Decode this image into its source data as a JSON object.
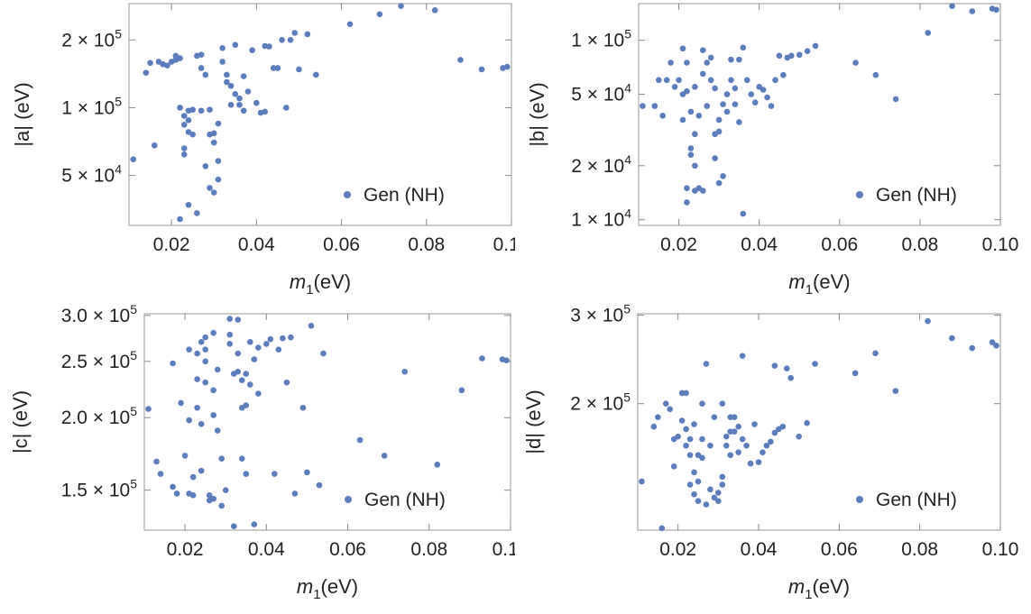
{
  "chart_data": [
    {
      "type": "scatter",
      "ylabel": "|a| (eV)",
      "xlabel_main": "m",
      "xlabel_sub": "1",
      "xlabel_unit": "(eV)",
      "xlim": [
        0.01,
        0.1
      ],
      "ylim": [
        30000,
        290000
      ],
      "yscale": "log",
      "x_ticks": [
        0.02,
        0.04,
        0.06,
        0.08,
        0.1
      ],
      "x_tick_labels": [
        "0.02",
        "0.04",
        "0.06",
        "0.08",
        "0.10"
      ],
      "y_ticks": [
        {
          "value": 50000,
          "mantissa": "5",
          "exp": "4"
        },
        {
          "value": 100000,
          "mantissa": "1",
          "exp": "5"
        },
        {
          "value": 200000,
          "mantissa": "2",
          "exp": "5"
        }
      ],
      "legend": "Gen (NH)",
      "color": "#5b7dbd",
      "points": [
        [
          0.011,
          59000
        ],
        [
          0.014,
          143000
        ],
        [
          0.015,
          158000
        ],
        [
          0.016,
          68000
        ],
        [
          0.017,
          160000
        ],
        [
          0.018,
          156000
        ],
        [
          0.019,
          154000
        ],
        [
          0.02,
          160000
        ],
        [
          0.021,
          163000
        ],
        [
          0.021,
          170000
        ],
        [
          0.022,
          166000
        ],
        [
          0.022,
          100000
        ],
        [
          0.023,
          92000
        ],
        [
          0.023,
          84000
        ],
        [
          0.023,
          66000
        ],
        [
          0.023,
          62000
        ],
        [
          0.022,
          32000
        ],
        [
          0.024,
          97000
        ],
        [
          0.024,
          88000
        ],
        [
          0.024,
          78000
        ],
        [
          0.024,
          37000
        ],
        [
          0.025,
          98000
        ],
        [
          0.025,
          76000
        ],
        [
          0.026,
          170000
        ],
        [
          0.026,
          34000
        ],
        [
          0.027,
          172000
        ],
        [
          0.027,
          150000
        ],
        [
          0.027,
          97000
        ],
        [
          0.028,
          140000
        ],
        [
          0.028,
          55000
        ],
        [
          0.029,
          98000
        ],
        [
          0.029,
          76000
        ],
        [
          0.029,
          44000
        ],
        [
          0.03,
          42000
        ],
        [
          0.03,
          70000
        ],
        [
          0.03,
          77000
        ],
        [
          0.031,
          85000
        ],
        [
          0.031,
          48000
        ],
        [
          0.031,
          58000
        ],
        [
          0.032,
          184000
        ],
        [
          0.032,
          160000
        ],
        [
          0.033,
          140000
        ],
        [
          0.033,
          130000
        ],
        [
          0.034,
          103000
        ],
        [
          0.034,
          125000
        ],
        [
          0.035,
          190000
        ],
        [
          0.035,
          115000
        ],
        [
          0.036,
          110000
        ],
        [
          0.036,
          103000
        ],
        [
          0.037,
          138000
        ],
        [
          0.037,
          97000
        ],
        [
          0.038,
          118000
        ],
        [
          0.039,
          180000
        ],
        [
          0.04,
          105000
        ],
        [
          0.041,
          95000
        ],
        [
          0.042,
          96000
        ],
        [
          0.042,
          188000
        ],
        [
          0.043,
          187000
        ],
        [
          0.044,
          150000
        ],
        [
          0.045,
          150000
        ],
        [
          0.046,
          200000
        ],
        [
          0.047,
          100000
        ],
        [
          0.048,
          200000
        ],
        [
          0.049,
          215000
        ],
        [
          0.05,
          148000
        ],
        [
          0.052,
          212000
        ],
        [
          0.054,
          140000
        ],
        [
          0.062,
          235000
        ],
        [
          0.069,
          260000
        ],
        [
          0.074,
          283000
        ],
        [
          0.082,
          271000
        ],
        [
          0.088,
          163000
        ],
        [
          0.093,
          148000
        ],
        [
          0.098,
          150000
        ],
        [
          0.099,
          152000
        ]
      ]
    },
    {
      "type": "scatter",
      "ylabel": "|b| (eV)",
      "xlabel_main": "m",
      "xlabel_sub": "1",
      "xlabel_unit": "(eV)",
      "xlim": [
        0.01,
        0.1
      ],
      "ylim": [
        9300,
        160000
      ],
      "yscale": "log",
      "x_ticks": [
        0.02,
        0.04,
        0.06,
        0.08,
        0.1
      ],
      "x_tick_labels": [
        "0.02",
        "0.04",
        "0.06",
        "0.08",
        "0.10"
      ],
      "y_ticks": [
        {
          "value": 10000,
          "mantissa": "1",
          "exp": "4"
        },
        {
          "value": 20000,
          "mantissa": "2",
          "exp": "4"
        },
        {
          "value": 50000,
          "mantissa": "5",
          "exp": "4"
        },
        {
          "value": 100000,
          "mantissa": "1",
          "exp": "5"
        }
      ],
      "legend": "Gen (NH)",
      "color": "#5b7dbd",
      "points": [
        [
          0.011,
          43000
        ],
        [
          0.014,
          43000
        ],
        [
          0.015,
          60000
        ],
        [
          0.016,
          38000
        ],
        [
          0.017,
          60000
        ],
        [
          0.018,
          75000
        ],
        [
          0.019,
          55000
        ],
        [
          0.02,
          60000
        ],
        [
          0.021,
          90000
        ],
        [
          0.021,
          50000
        ],
        [
          0.021,
          36000
        ],
        [
          0.022,
          15000
        ],
        [
          0.022,
          12500
        ],
        [
          0.022,
          75000
        ],
        [
          0.022,
          52000
        ],
        [
          0.023,
          40000
        ],
        [
          0.023,
          25000
        ],
        [
          0.023,
          23000
        ],
        [
          0.024,
          14500
        ],
        [
          0.024,
          20000
        ],
        [
          0.024,
          30000
        ],
        [
          0.024,
          55000
        ],
        [
          0.025,
          15000
        ],
        [
          0.025,
          38000
        ],
        [
          0.026,
          14500
        ],
        [
          0.026,
          88000
        ],
        [
          0.026,
          65000
        ],
        [
          0.027,
          75000
        ],
        [
          0.027,
          43000
        ],
        [
          0.028,
          80000
        ],
        [
          0.028,
          60000
        ],
        [
          0.029,
          22000
        ],
        [
          0.029,
          30000
        ],
        [
          0.029,
          54000
        ],
        [
          0.03,
          16000
        ],
        [
          0.03,
          36000
        ],
        [
          0.03,
          31000
        ],
        [
          0.031,
          44000
        ],
        [
          0.031,
          17500
        ],
        [
          0.032,
          40000
        ],
        [
          0.032,
          50000
        ],
        [
          0.033,
          78000
        ],
        [
          0.033,
          60000
        ],
        [
          0.034,
          54000
        ],
        [
          0.034,
          44000
        ],
        [
          0.035,
          35000
        ],
        [
          0.035,
          78000
        ],
        [
          0.036,
          91000
        ],
        [
          0.036,
          10800
        ],
        [
          0.037,
          60000
        ],
        [
          0.038,
          50000
        ],
        [
          0.039,
          45000
        ],
        [
          0.04,
          55000
        ],
        [
          0.041,
          53000
        ],
        [
          0.042,
          48000
        ],
        [
          0.043,
          43000
        ],
        [
          0.044,
          60000
        ],
        [
          0.045,
          82000
        ],
        [
          0.046,
          64000
        ],
        [
          0.047,
          80000
        ],
        [
          0.048,
          82000
        ],
        [
          0.05,
          83000
        ],
        [
          0.052,
          87000
        ],
        [
          0.054,
          93000
        ],
        [
          0.064,
          75000
        ],
        [
          0.069,
          64000
        ],
        [
          0.074,
          47000
        ],
        [
          0.082,
          110000
        ],
        [
          0.088,
          155000
        ],
        [
          0.093,
          145000
        ],
        [
          0.098,
          150000
        ],
        [
          0.099,
          148000
        ]
      ]
    },
    {
      "type": "scatter",
      "ylabel": "|c| (eV)",
      "xlabel_main": "m",
      "xlabel_sub": "1",
      "xlabel_unit": "(eV)",
      "xlim": [
        0.01,
        0.1
      ],
      "ylim": [
        128000,
        302000
      ],
      "yscale": "log",
      "x_ticks": [
        0.02,
        0.04,
        0.06,
        0.08,
        0.1
      ],
      "x_tick_labels": [
        "0.02",
        "0.04",
        "0.06",
        "0.08",
        "0.10"
      ],
      "y_ticks": [
        {
          "value": 150000,
          "mantissa": "1.5",
          "exp": "5"
        },
        {
          "value": 200000,
          "mantissa": "2.0",
          "exp": "5"
        },
        {
          "value": 250000,
          "mantissa": "2.5",
          "exp": "5"
        },
        {
          "value": 300000,
          "mantissa": "3.0",
          "exp": "5"
        }
      ],
      "legend": "Gen (NH)",
      "color": "#5b7dbd",
      "points": [
        [
          0.011,
          207000
        ],
        [
          0.013,
          168000
        ],
        [
          0.014,
          160000
        ],
        [
          0.017,
          248000
        ],
        [
          0.017,
          152000
        ],
        [
          0.018,
          148000
        ],
        [
          0.019,
          212000
        ],
        [
          0.02,
          172000
        ],
        [
          0.021,
          262000
        ],
        [
          0.021,
          198000
        ],
        [
          0.021,
          148000
        ],
        [
          0.022,
          158000
        ],
        [
          0.022,
          147000
        ],
        [
          0.023,
          258000
        ],
        [
          0.023,
          233000
        ],
        [
          0.023,
          208000
        ],
        [
          0.024,
          270000
        ],
        [
          0.024,
          195000
        ],
        [
          0.024,
          162000
        ],
        [
          0.025,
          275000
        ],
        [
          0.025,
          262000
        ],
        [
          0.025,
          250000
        ],
        [
          0.025,
          230000
        ],
        [
          0.026,
          147000
        ],
        [
          0.026,
          144000
        ],
        [
          0.027,
          145000
        ],
        [
          0.027,
          280000
        ],
        [
          0.027,
          223000
        ],
        [
          0.027,
          202000
        ],
        [
          0.028,
          242000
        ],
        [
          0.028,
          190000
        ],
        [
          0.029,
          170000
        ],
        [
          0.029,
          141000
        ],
        [
          0.03,
          150000
        ],
        [
          0.031,
          296000
        ],
        [
          0.031,
          278000
        ],
        [
          0.031,
          268000
        ],
        [
          0.032,
          238000
        ],
        [
          0.032,
          130000
        ],
        [
          0.033,
          295000
        ],
        [
          0.033,
          258000
        ],
        [
          0.033,
          240000
        ],
        [
          0.034,
          232000
        ],
        [
          0.034,
          208000
        ],
        [
          0.034,
          170000
        ],
        [
          0.035,
          210000
        ],
        [
          0.035,
          160000
        ],
        [
          0.035,
          238000
        ],
        [
          0.036,
          228000
        ],
        [
          0.036,
          270000
        ],
        [
          0.037,
          252000
        ],
        [
          0.037,
          131000
        ],
        [
          0.038,
          220000
        ],
        [
          0.038,
          264000
        ],
        [
          0.04,
          268000
        ],
        [
          0.041,
          273000
        ],
        [
          0.042,
          160000
        ],
        [
          0.043,
          262000
        ],
        [
          0.044,
          274000
        ],
        [
          0.045,
          230000
        ],
        [
          0.046,
          275000
        ],
        [
          0.047,
          148000
        ],
        [
          0.049,
          208000
        ],
        [
          0.05,
          161000
        ],
        [
          0.051,
          288000
        ],
        [
          0.053,
          153000
        ],
        [
          0.054,
          258000
        ],
        [
          0.063,
          183000
        ],
        [
          0.069,
          172000
        ],
        [
          0.074,
          240000
        ],
        [
          0.082,
          166000
        ],
        [
          0.088,
          223000
        ],
        [
          0.093,
          253000
        ],
        [
          0.098,
          252000
        ],
        [
          0.099,
          251000
        ]
      ]
    },
    {
      "type": "scatter",
      "ylabel": "|d| (eV)",
      "xlabel_main": "m",
      "xlabel_sub": "1",
      "xlabel_unit": "(eV)",
      "xlim": [
        0.01,
        0.1
      ],
      "ylim": [
        112000,
        302000
      ],
      "yscale": "log",
      "x_ticks": [
        0.02,
        0.04,
        0.06,
        0.08,
        0.1
      ],
      "x_tick_labels": [
        "0.02",
        "0.04",
        "0.06",
        "0.08",
        "0.10"
      ],
      "y_ticks": [
        {
          "value": 200000,
          "mantissa": "2",
          "exp": "5"
        },
        {
          "value": 300000,
          "mantissa": "3",
          "exp": "5"
        }
      ],
      "legend": "Gen (NH)",
      "color": "#5b7dbd",
      "points": [
        [
          0.011,
          140000
        ],
        [
          0.014,
          180000
        ],
        [
          0.015,
          188000
        ],
        [
          0.016,
          113000
        ],
        [
          0.017,
          200000
        ],
        [
          0.018,
          195000
        ],
        [
          0.019,
          170000
        ],
        [
          0.019,
          150000
        ],
        [
          0.02,
          172000
        ],
        [
          0.021,
          185000
        ],
        [
          0.021,
          210000
        ],
        [
          0.022,
          210000
        ],
        [
          0.022,
          178000
        ],
        [
          0.022,
          165000
        ],
        [
          0.023,
          138000
        ],
        [
          0.023,
          170000
        ],
        [
          0.023,
          158000
        ],
        [
          0.024,
          182000
        ],
        [
          0.024,
          132000
        ],
        [
          0.024,
          146000
        ],
        [
          0.025,
          140000
        ],
        [
          0.025,
          158000
        ],
        [
          0.025,
          128000
        ],
        [
          0.026,
          156000
        ],
        [
          0.026,
          200000
        ],
        [
          0.026,
          170000
        ],
        [
          0.027,
          240000
        ],
        [
          0.027,
          126000
        ],
        [
          0.028,
          135000
        ],
        [
          0.028,
          165000
        ],
        [
          0.029,
          188000
        ],
        [
          0.029,
          130000
        ],
        [
          0.03,
          128000
        ],
        [
          0.03,
          133000
        ],
        [
          0.031,
          138000
        ],
        [
          0.031,
          143000
        ],
        [
          0.031,
          200000
        ],
        [
          0.032,
          165000
        ],
        [
          0.032,
          172000
        ],
        [
          0.033,
          188000
        ],
        [
          0.033,
          176000
        ],
        [
          0.033,
          158000
        ],
        [
          0.034,
          188000
        ],
        [
          0.034,
          176000
        ],
        [
          0.035,
          180000
        ],
        [
          0.035,
          160000
        ],
        [
          0.036,
          170000
        ],
        [
          0.036,
          249000
        ],
        [
          0.037,
          165000
        ],
        [
          0.038,
          152000
        ],
        [
          0.039,
          182000
        ],
        [
          0.04,
          153000
        ],
        [
          0.041,
          160000
        ],
        [
          0.042,
          165000
        ],
        [
          0.043,
          168000
        ],
        [
          0.044,
          175000
        ],
        [
          0.044,
          238000
        ],
        [
          0.045,
          178000
        ],
        [
          0.046,
          180000
        ],
        [
          0.047,
          235000
        ],
        [
          0.048,
          225000
        ],
        [
          0.05,
          172000
        ],
        [
          0.052,
          183000
        ],
        [
          0.054,
          240000
        ],
        [
          0.064,
          230000
        ],
        [
          0.069,
          252000
        ],
        [
          0.074,
          212000
        ],
        [
          0.082,
          292000
        ],
        [
          0.088,
          270000
        ],
        [
          0.093,
          258000
        ],
        [
          0.098,
          265000
        ],
        [
          0.099,
          261000
        ]
      ]
    }
  ]
}
